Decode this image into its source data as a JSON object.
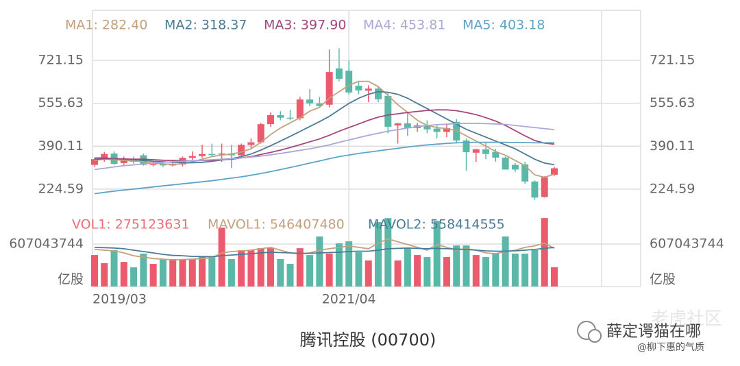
{
  "chart_data": {
    "type": "candlestick",
    "title": "腾讯控股 (00700)",
    "categories": [
      "2019/03",
      null,
      null,
      null,
      null,
      null,
      null,
      null,
      null,
      null,
      null,
      null,
      null,
      null,
      null,
      null,
      null,
      null,
      null,
      null,
      null,
      null,
      null,
      null,
      null,
      null,
      "2021/04",
      null,
      null,
      null,
      null,
      null,
      null,
      null,
      null,
      null,
      null,
      null,
      null,
      null,
      null,
      null,
      null,
      null,
      null,
      null,
      null,
      null
    ],
    "open": [
      318,
      340,
      362,
      325,
      342,
      355,
      318,
      322,
      316,
      320,
      345,
      352,
      360,
      358,
      362,
      355,
      395,
      405,
      475,
      510,
      500,
      498,
      570,
      555,
      550,
      690,
      681,
      623,
      604,
      612,
      584,
      470,
      478,
      460,
      468,
      458,
      445,
      484,
      412,
      365,
      378,
      368,
      346,
      318,
      320,
      254,
      194,
      280
    ],
    "high": [
      345,
      368,
      370,
      350,
      350,
      362,
      330,
      328,
      335,
      350,
      370,
      395,
      400,
      400,
      395,
      400,
      420,
      480,
      520,
      525,
      530,
      580,
      610,
      580,
      763,
      768,
      720,
      640,
      625,
      620,
      600,
      480,
      520,
      480,
      490,
      470,
      475,
      495,
      420,
      380,
      405,
      380,
      350,
      325,
      330,
      258,
      275,
      310
    ],
    "low": [
      310,
      330,
      318,
      318,
      322,
      315,
      312,
      310,
      312,
      312,
      338,
      345,
      350,
      330,
      306,
      345,
      380,
      400,
      465,
      490,
      490,
      490,
      545,
      540,
      540,
      640,
      590,
      590,
      560,
      560,
      440,
      400,
      430,
      445,
      440,
      420,
      425,
      400,
      295,
      330,
      340,
      330,
      300,
      290,
      245,
      183,
      192,
      275
    ],
    "close": [
      340,
      360,
      322,
      342,
      330,
      318,
      322,
      316,
      320,
      345,
      352,
      360,
      358,
      362,
      355,
      395,
      405,
      475,
      510,
      500,
      498,
      570,
      555,
      545,
      676,
      650,
      597,
      605,
      612,
      571,
      465,
      478,
      460,
      470,
      455,
      445,
      460,
      412,
      367,
      378,
      360,
      346,
      300,
      300,
      254,
      192,
      270,
      305
    ],
    "up_color": "#ec5a6e",
    "down_color": "#5bb8a8",
    "ylim": [
      161,
      914
    ],
    "yticks": [
      224.59,
      390.11,
      555.63,
      721.15
    ],
    "grid": true,
    "series": [
      {
        "name": "MA1: 282.40",
        "color": "#c4a07c",
        "values": [
          335,
          340,
          338,
          335,
          333,
          330,
          325,
          322,
          320,
          322,
          330,
          340,
          350,
          356,
          360,
          368,
          380,
          405,
          435,
          460,
          480,
          500,
          525,
          540,
          575,
          600,
          625,
          640,
          640,
          620,
          585,
          550,
          520,
          490,
          470,
          462,
          458,
          450,
          430,
          410,
          390,
          370,
          355,
          335,
          315,
          280,
          270,
          282.4
        ]
      },
      {
        "name": "MA2: 318.37",
        "color": "#4b7b96",
        "values": [
          345,
          345,
          342,
          340,
          338,
          335,
          332,
          330,
          328,
          326,
          326,
          328,
          332,
          337,
          342,
          350,
          360,
          375,
          392,
          410,
          428,
          447,
          466,
          485,
          505,
          530,
          555,
          575,
          590,
          600,
          598,
          590,
          575,
          555,
          535,
          515,
          495,
          475,
          455,
          440,
          425,
          410,
          395,
          380,
          360,
          340,
          325,
          318.37
        ]
      },
      {
        "name": "MA3: 397.90",
        "color": "#a4487b",
        "values": [
          340,
          342,
          342,
          341,
          340,
          340,
          338,
          336,
          335,
          334,
          334,
          335,
          336,
          338,
          340,
          345,
          350,
          358,
          366,
          375,
          385,
          396,
          407,
          418,
          432,
          448,
          462,
          476,
          490,
          502,
          510,
          515,
          520,
          524,
          528,
          530,
          530,
          527,
          520,
          512,
          500,
          487,
          470,
          450,
          430,
          412,
          402,
          397.9
        ]
      },
      {
        "name": "MA4: 453.81",
        "color": "#aaa7da",
        "values": [
          300,
          305,
          310,
          315,
          318,
          322,
          325,
          328,
          330,
          332,
          334,
          336,
          338,
          340,
          342,
          345,
          348,
          352,
          357,
          362,
          368,
          374,
          380,
          387,
          395,
          405,
          414,
          423,
          432,
          440,
          448,
          454,
          460,
          465,
          470,
          473,
          475,
          477,
          478,
          478,
          477,
          476,
          474,
          470,
          466,
          462,
          458,
          453.81
        ]
      },
      {
        "name": "MA5: 403.18",
        "color": "#5ea4c8",
        "values": [
          207,
          212,
          217,
          221,
          225,
          229,
          233,
          237,
          241,
          245,
          249,
          253,
          257,
          262,
          267,
          272,
          278,
          285,
          292,
          300,
          308,
          316,
          325,
          333,
          342,
          350,
          356,
          362,
          367,
          372,
          377,
          382,
          387,
          391,
          395,
          398,
          401,
          403,
          404,
          405,
          405,
          405,
          405,
          404,
          404,
          403,
          403,
          403.18
        ]
      }
    ],
    "volume": {
      "name": "VOL1: 275123631",
      "color": "#ec6d78",
      "values": [
        450000000,
        333000000,
        519000000,
        352000000,
        274000000,
        470000000,
        323000000,
        392000000,
        392000000,
        392000000,
        392000000,
        421000000,
        421000000,
        842000000,
        392000000,
        519000000,
        519000000,
        548000000,
        548000000,
        392000000,
        323000000,
        548000000,
        450000000,
        715000000,
        470000000,
        617000000,
        646000000,
        490000000,
        372000000,
        920000000,
        979000000,
        372000000,
        548000000,
        450000000,
        421000000,
        940000000,
        421000000,
        587000000,
        587000000,
        450000000,
        421000000,
        470000000,
        715000000,
        470000000,
        470000000,
        520000000,
        979000000,
        275123631
      ],
      "ylim": [
        0,
        1000000000
      ],
      "yticks": [
        607043744
      ],
      "unit": "亿股",
      "series": [
        {
          "name": "MAVOL1: 546407480",
          "color": "#c4a07c",
          "values": [
            530000000,
            520000000,
            510000000,
            480000000,
            440000000,
            420000000,
            400000000,
            390000000,
            380000000,
            385000000,
            390000000,
            400000000,
            410000000,
            480000000,
            500000000,
            510000000,
            520000000,
            540000000,
            560000000,
            520000000,
            480000000,
            470000000,
            480000000,
            520000000,
            540000000,
            560000000,
            580000000,
            560000000,
            540000000,
            620000000,
            680000000,
            640000000,
            600000000,
            560000000,
            520000000,
            600000000,
            560000000,
            520000000,
            540000000,
            520000000,
            480000000,
            470000000,
            500000000,
            520000000,
            560000000,
            580000000,
            620000000,
            546407480
          ]
        },
        {
          "name": "MAVOL2: 558414555",
          "color": "#4b7b96",
          "values": [
            560000000,
            555000000,
            550000000,
            540000000,
            520000000,
            500000000,
            480000000,
            460000000,
            445000000,
            440000000,
            430000000,
            428000000,
            426000000,
            440000000,
            450000000,
            460000000,
            470000000,
            480000000,
            490000000,
            485000000,
            480000000,
            475000000,
            475000000,
            480000000,
            485000000,
            490000000,
            500000000,
            505000000,
            505000000,
            520000000,
            540000000,
            545000000,
            550000000,
            545000000,
            540000000,
            545000000,
            540000000,
            535000000,
            530000000,
            520000000,
            510000000,
            505000000,
            505000000,
            510000000,
            520000000,
            530000000,
            545000000,
            558414555
          ]
        }
      ]
    }
  },
  "watermark": {
    "brand": "老虎社区",
    "author": "薛定谔猫在哪",
    "handle": "@柳下惠的气质"
  }
}
